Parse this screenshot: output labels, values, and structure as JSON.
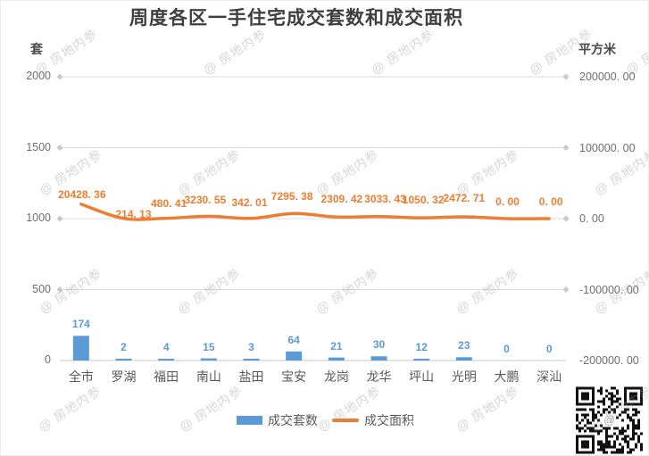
{
  "title": "周度各区一手住宅成交套数和成交面积",
  "left_axis_unit": "套",
  "right_axis_unit": "平方米",
  "watermark_text": "@ 房地内参",
  "legend": {
    "bar_label": "成交套数",
    "line_label": "成交面积"
  },
  "colors": {
    "bar": "#5B9BD5",
    "line": "#ED7D31",
    "grid": "#DCDCDC",
    "diamond": "#C9C9C9"
  },
  "chart_data": {
    "type": "combo_bar_line",
    "title": "周度各区一手住宅成交套数和成交面积",
    "categories": [
      "全市",
      "罗湖",
      "福田",
      "南山",
      "盐田",
      "宝安",
      "龙岗",
      "龙华",
      "坪山",
      "光明",
      "大鹏",
      "深汕"
    ],
    "series": [
      {
        "name": "成交套数",
        "type": "bar",
        "y_axis": "left",
        "color": "#5B9BD5",
        "values": [
          174,
          2,
          4,
          15,
          3,
          64,
          21,
          30,
          12,
          23,
          0,
          0
        ]
      },
      {
        "name": "成交面积",
        "type": "line",
        "y_axis": "right",
        "color": "#ED7D31",
        "values": [
          20428.36,
          214.13,
          480.41,
          3230.55,
          342.01,
          7295.38,
          2309.42,
          3033.43,
          1050.32,
          2472.71,
          0.0,
          0.0
        ],
        "point_labels": [
          "20428. 36",
          "214. 13",
          "480. 41",
          "3230. 55",
          "342. 01",
          "7295. 38",
          "2309. 42",
          "3033. 43",
          "1050. 32",
          "2472. 71",
          "0. 00",
          "0. 00"
        ]
      }
    ],
    "left_axis": {
      "unit": "套",
      "min": 0,
      "max": 2000,
      "ticks": [
        "2000",
        "1500",
        "1000",
        "500",
        "0"
      ]
    },
    "right_axis": {
      "unit": "平方米",
      "min": -200000,
      "max": 200000,
      "ticks": [
        "200000. 00",
        "100000. 00",
        "0. 00",
        "-100000. 00",
        "-200000. 00"
      ]
    },
    "grid": true,
    "legend_position": "bottom"
  }
}
